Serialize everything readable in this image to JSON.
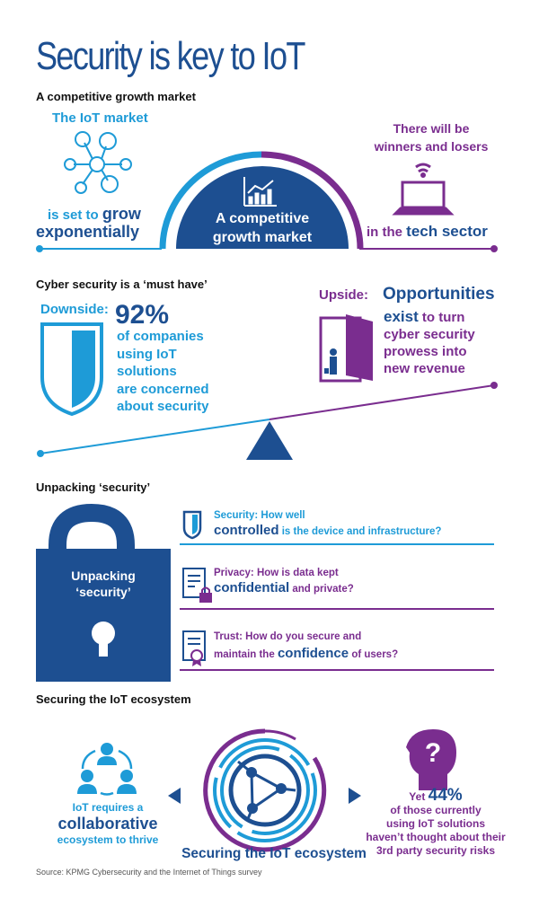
{
  "title": "Security is key to IoT",
  "colors": {
    "dark_blue": "#1d4f91",
    "light_blue": "#1e9bd7",
    "purple": "#7a2d8f"
  },
  "growth": {
    "heading": "A competitive growth market",
    "left_top": "The IoT market",
    "left_mid": "is set to",
    "left_grow": "grow",
    "left_bottom": "exponentially",
    "center": [
      "A competitive",
      "growth market"
    ],
    "right_top": [
      "There will be",
      "winners and losers"
    ],
    "right_pre": "in the",
    "right_em": "tech sector",
    "icons": [
      "network-icon",
      "chart-icon",
      "laptop-wifi-icon"
    ]
  },
  "cyber": {
    "heading": "Cyber security is a ‘must have’",
    "downside_label": "Downside:",
    "percent": "92%",
    "downside_lines": [
      "of companies",
      "using IoT",
      "solutions",
      "are concerned",
      "about security"
    ],
    "upside_label": "Upside:",
    "upside_em": "Opportunities",
    "upside_exist": "exist",
    "upside_lines": [
      "to turn",
      "cyber security",
      "prowess into",
      "new revenue"
    ]
  },
  "unpacking": {
    "heading": "Unpacking ‘security’",
    "lock_text": [
      "Unpacking",
      "‘security’"
    ],
    "items": [
      {
        "line1": "Security: How well",
        "em": "controlled",
        "rest": "is the device and infrastructure?",
        "icon": "shield-icon"
      },
      {
        "line1": "Privacy: How is data kept",
        "em": "confidential",
        "rest": "and private?",
        "icon": "document-lock-icon"
      },
      {
        "line1": "Trust: How do you secure and",
        "pre": "maintain the",
        "em": "confidence",
        "rest": "of users?",
        "icon": "certificate-icon"
      }
    ]
  },
  "ecosystem": {
    "heading": "Securing the IoT ecosystem",
    "left": {
      "l1": "IoT requires a",
      "em": "collaborative",
      "l3": "ecosystem to thrive"
    },
    "center": "Securing the IoT ecosystem",
    "right": {
      "yet": "Yet",
      "percent": "44%",
      "lines": [
        "of those currently",
        "using IoT solutions",
        "haven’t thought about their",
        "3rd party security risks"
      ]
    }
  },
  "source": "Source: KPMG Cybersecurity and the Internet of Things survey"
}
